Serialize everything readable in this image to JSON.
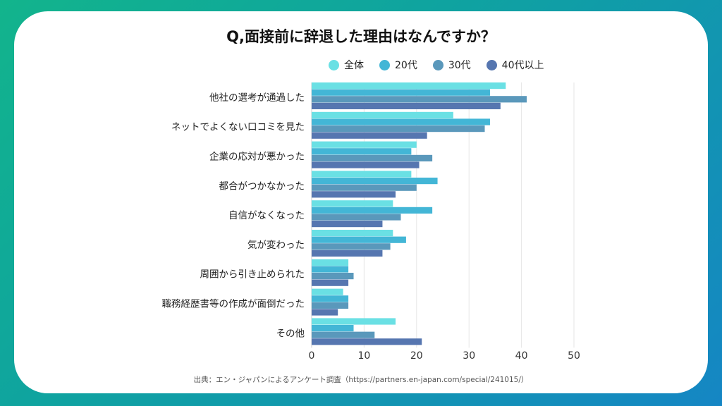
{
  "chart_data": {
    "type": "bar",
    "orientation": "horizontal",
    "title": "Q,面接前に辞退した理由はなんですか？",
    "categories": [
      "他社の選考が通過した",
      "ネットでよくない口コミを見た",
      "企業の応対が悪かった",
      "都合がつかなかった",
      "自信がなくなった",
      "気が変わった",
      "周囲から引き止められた",
      "職務経歴書等の作成が面倒だった",
      "その他"
    ],
    "series": [
      {
        "name": "全体",
        "color": "#6ae0e4",
        "values": [
          37,
          27,
          20,
          19,
          15.5,
          15.5,
          7,
          6,
          16
        ]
      },
      {
        "name": "20代",
        "color": "#43b6d6",
        "values": [
          34,
          34,
          19,
          24,
          23,
          18,
          7,
          7,
          8
        ]
      },
      {
        "name": "30代",
        "color": "#5a98bb",
        "values": [
          41,
          33,
          23,
          20,
          17,
          15,
          8,
          7,
          12
        ]
      },
      {
        "name": "40代以上",
        "color": "#5676b0",
        "values": [
          36,
          22,
          20.5,
          16,
          13.5,
          13.5,
          7,
          5,
          21
        ]
      }
    ],
    "xlim": [
      0,
      50
    ],
    "xticks": [
      "0",
      "10",
      "20",
      "30",
      "40",
      "50"
    ],
    "grid": true,
    "legend_position": "top"
  },
  "source": "出典：エン・ジャパンによるアンケート調査（https://partners.en-japan.com/special/241015/）"
}
